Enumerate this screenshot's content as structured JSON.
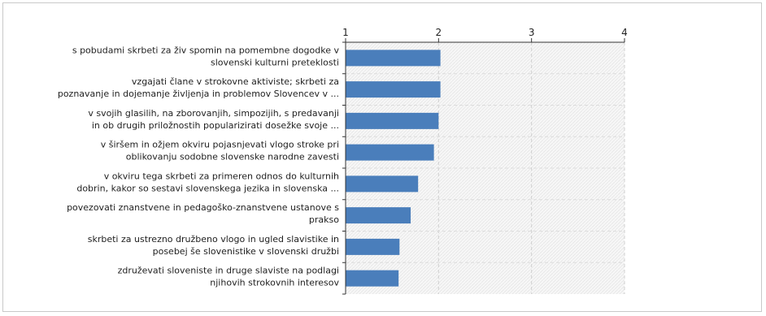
{
  "chart_data": {
    "type": "bar",
    "orientation": "horizontal",
    "xlim": [
      1,
      4
    ],
    "x_ticks": [
      "1",
      "2",
      "3",
      "4"
    ],
    "grid": true,
    "bar_color": "#4a7ebb",
    "categories": [
      [
        "s pobudami skrbeti za živ spomin na pomembne dogodke v",
        "slovenski kulturni preteklosti"
      ],
      [
        "vzgajati člane v strokovne aktiviste; skrbeti za",
        "poznavanje in dojemanje življenja in problemov Slovencev v ..."
      ],
      [
        "v svojih glasilih, na zborovanjih, simpozijih, s predavanji",
        "in ob drugih priložnostih popularizirati dosežke svoje ..."
      ],
      [
        "v širšem in ožjem okviru pojasnjevati vlogo stroke pri",
        "oblikovanju sodobne slovenske narodne zavesti"
      ],
      [
        "v okviru tega skrbeti za primeren odnos do kulturnih",
        "dobrin, kakor so sestavi slovenskega jezika in slovenska ..."
      ],
      [
        "povezovati znanstvene in pedagoško-znanstvene ustanove s",
        "prakso"
      ],
      [
        "skrbeti za ustrezno družbeno vlogo in ugled slavistike in",
        "posebej še slovenistike v slovenski družbi"
      ],
      [
        "združevati sloveniste in druge slaviste na podlagi",
        "njihovih strokovnih interesov"
      ]
    ],
    "values": [
      2.02,
      2.02,
      2.0,
      1.95,
      1.78,
      1.7,
      1.58,
      1.57
    ]
  }
}
